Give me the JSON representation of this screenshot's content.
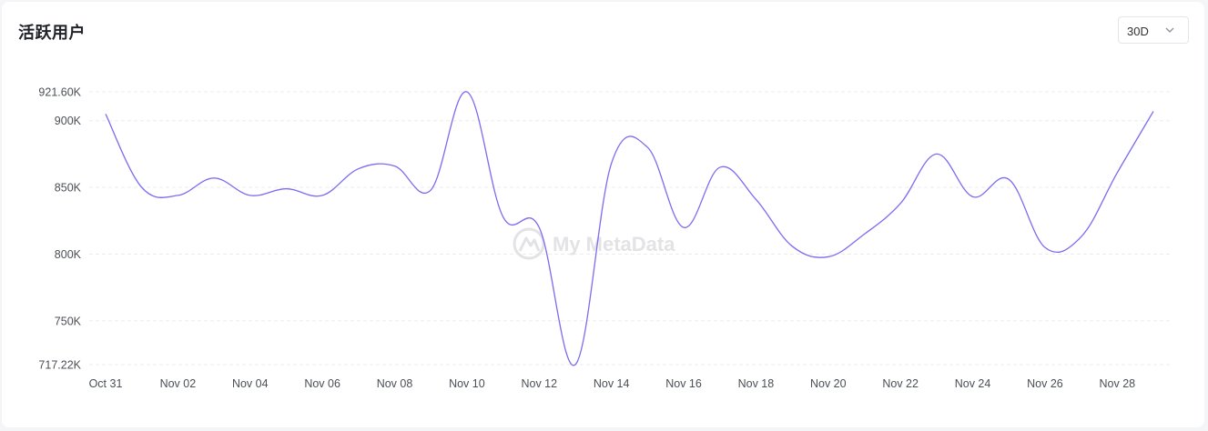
{
  "header": {
    "title": "活跃用户",
    "range_select": {
      "value": "30D",
      "icon": "chevron-down-icon"
    }
  },
  "watermark": {
    "text": "My MetaData",
    "icon": "logo-icon"
  },
  "colors": {
    "line": "#7b6cf0",
    "grid": "#ececef",
    "text": "#4b4f56"
  },
  "chart_data": {
    "type": "line",
    "title": "活跃用户",
    "x_tick_labels": [
      "Oct 31",
      "Nov 02",
      "Nov 04",
      "Nov 06",
      "Nov 08",
      "Nov 10",
      "Nov 12",
      "Nov 14",
      "Nov 16",
      "Nov 18",
      "Nov 20",
      "Nov 22",
      "Nov 24",
      "Nov 26",
      "Nov 28"
    ],
    "y_tick_values": [
      717220,
      750000,
      800000,
      850000,
      900000,
      921600
    ],
    "y_tick_labels": [
      "717.22K",
      "750K",
      "800K",
      "850K",
      "900K",
      "921.60K"
    ],
    "ylim": [
      717220,
      921600
    ],
    "grid": "horizontal-dashed",
    "legend": "none",
    "series": [
      {
        "x": [
          "Oct 31",
          "Nov 01",
          "Nov 02",
          "Nov 03",
          "Nov 04",
          "Nov 05",
          "Nov 06",
          "Nov 07",
          "Nov 08",
          "Nov 09",
          "Nov 10",
          "Nov 11",
          "Nov 12",
          "Nov 13",
          "Nov 14",
          "Nov 15",
          "Nov 16",
          "Nov 17",
          "Nov 18",
          "Nov 19",
          "Nov 20",
          "Nov 21",
          "Nov 22",
          "Nov 23",
          "Nov 24",
          "Nov 25",
          "Nov 26",
          "Nov 27",
          "Nov 28",
          "Nov 29"
        ],
        "values": [
          905000,
          850000,
          844000,
          857000,
          844000,
          849000,
          844000,
          864000,
          866000,
          848000,
          921600,
          828000,
          820000,
          717220,
          868000,
          880000,
          820000,
          865000,
          841000,
          806000,
          798000,
          815000,
          838000,
          875000,
          843000,
          856000,
          805000,
          813000,
          861000,
          907000
        ]
      }
    ]
  }
}
